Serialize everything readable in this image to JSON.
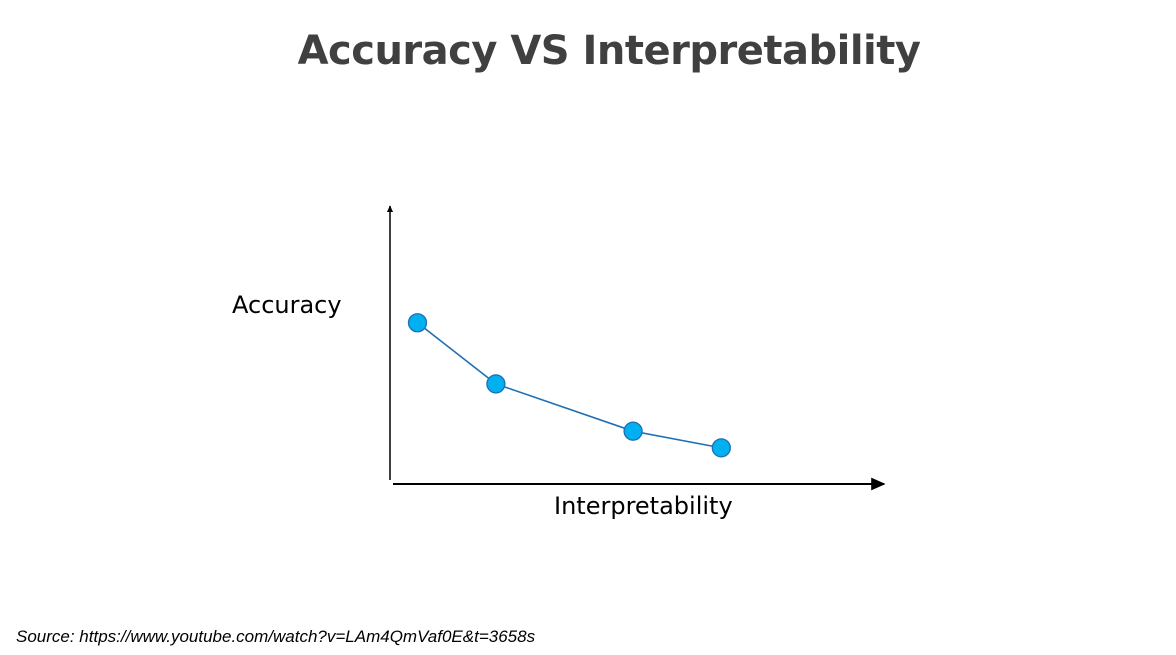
{
  "slide": {
    "title": "Accuracy VS Interpretability",
    "source": "Source: https://www.youtube.com/watch?v=LAm4QmVaf0E&t=3658s"
  },
  "colors": {
    "marker_fill": "#00B0F0",
    "marker_stroke": "#1F6FB5",
    "line": "#1F6FB5",
    "axis": "#000000",
    "title": "#404040"
  },
  "chart_data": {
    "type": "line",
    "title": "",
    "xlabel": "Interpretability",
    "ylabel": "Accuracy",
    "x_ticks": "none",
    "y_ticks": "none",
    "grid": false,
    "legend": "none",
    "xlim": [
      0,
      10
    ],
    "ylim": [
      0,
      10
    ],
    "series": [
      {
        "name": "",
        "x": [
          0.5,
          2.1,
          4.9,
          6.7
        ],
        "y": [
          5.8,
          3.6,
          1.9,
          1.3
        ]
      }
    ]
  }
}
